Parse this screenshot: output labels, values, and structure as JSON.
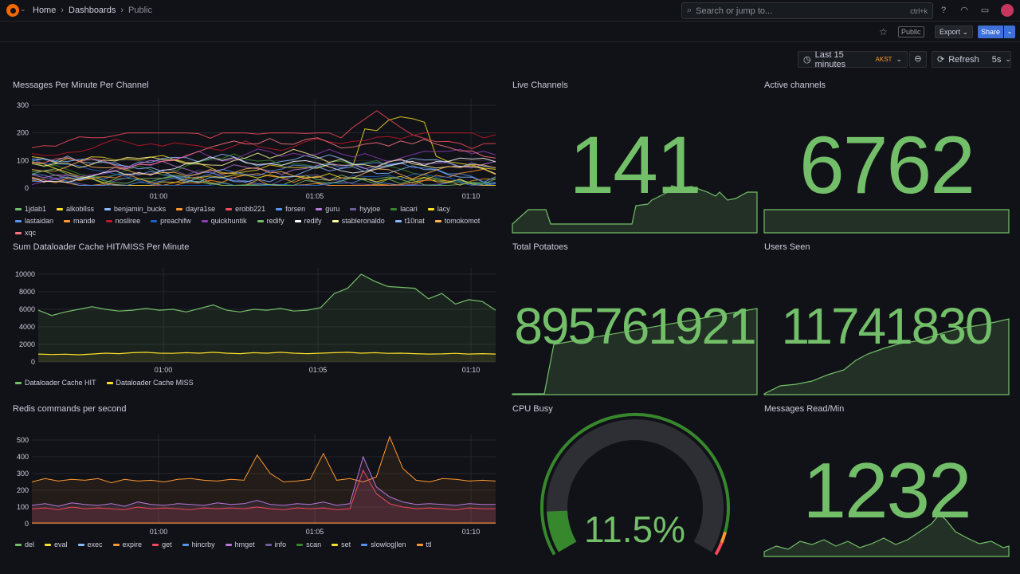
{
  "nav": {
    "breadcrumbs": [
      "Home",
      "Dashboards",
      "Public"
    ],
    "search_placeholder": "Search or jump to...",
    "search_shortcut": "ctrl+k",
    "public_badge": "Public",
    "export_label": "Export",
    "share_label": "Share"
  },
  "controls": {
    "time_range": "Last 15 minutes",
    "timezone": "AKST",
    "refresh_label": "Refresh",
    "refresh_interval": "5s"
  },
  "colors": {
    "green": "#73bf69",
    "yellow": "#fade2a",
    "red": "#f2495c",
    "blue": "#5794f2",
    "accent": "#3d71d9"
  },
  "panels": {
    "messages": {
      "title": "Messages Per Minute Per Channel",
      "y_ticks": [
        "300",
        "200",
        "100",
        "0"
      ],
      "x_ticks": [
        "01:00",
        "01:05",
        "01:10"
      ],
      "legend": [
        {
          "name": "1jdab1",
          "color": "#73bf69"
        },
        {
          "name": "alkoblIss",
          "color": "#fade2a"
        },
        {
          "name": "benjamin_bucks",
          "color": "#8ab8ff"
        },
        {
          "name": "dayra1se",
          "color": "#ff9830"
        },
        {
          "name": "erobb221",
          "color": "#f2495c"
        },
        {
          "name": "forsen",
          "color": "#5794f2"
        },
        {
          "name": "guru",
          "color": "#b877d9"
        },
        {
          "name": "hyyjoe",
          "color": "#705da0"
        },
        {
          "name": "lacari",
          "color": "#37872d"
        },
        {
          "name": "lacy",
          "color": "#fade2a"
        },
        {
          "name": "lastaidan",
          "color": "#5794f2"
        },
        {
          "name": "mande",
          "color": "#ff9830"
        },
        {
          "name": "nosliree",
          "color": "#c4162a"
        },
        {
          "name": "preachifw",
          "color": "#1f60c4"
        },
        {
          "name": "quickhuntik",
          "color": "#8f3bb8"
        },
        {
          "name": "redify",
          "color": "#73bf69"
        },
        {
          "name": "redify",
          "color": "#ffffff"
        },
        {
          "name": "stableronaldo",
          "color": "#fff899"
        },
        {
          "name": "t10nat",
          "color": "#8ab8ff"
        },
        {
          "name": "tomokomot",
          "color": "#ffb357"
        },
        {
          "name": "xqc",
          "color": "#ff7383"
        }
      ]
    },
    "dataloader": {
      "title": "Sum Dataloader Cache HIT/MISS Per Minute",
      "y_ticks": [
        "10000",
        "8000",
        "6000",
        "4000",
        "2000",
        "0"
      ],
      "x_ticks": [
        "01:00",
        "01:05",
        "01:10"
      ],
      "legend": [
        {
          "name": "Dataloader Cache HIT",
          "color": "#73bf69"
        },
        {
          "name": "Dataloader Cache MISS",
          "color": "#fade2a"
        }
      ],
      "hit": [
        5900,
        5300,
        5700,
        6000,
        6300,
        6000,
        5800,
        5900,
        6100,
        5900,
        6000,
        5700,
        6100,
        6500,
        5900,
        5700,
        6000,
        5900,
        6100,
        5800,
        5900,
        6200,
        7800,
        8400,
        10000,
        9200,
        8600,
        8500,
        8400,
        7200,
        7800,
        6600,
        7100,
        6900,
        5900
      ],
      "miss": [
        900,
        850,
        880,
        820,
        900,
        1000,
        950,
        1050,
        1100,
        1000,
        980,
        1050,
        1000,
        1100,
        1000,
        950,
        1050,
        1000,
        1100,
        1000,
        950,
        1000,
        1050,
        1100,
        1000,
        1050,
        980,
        1000,
        950,
        900,
        920,
        980,
        900,
        950,
        900
      ]
    },
    "redis": {
      "title": "Redis commands per second",
      "y_ticks": [
        "500",
        "400",
        "300",
        "200",
        "100",
        "0"
      ],
      "x_ticks": [
        "01:00",
        "01:05",
        "01:10"
      ],
      "legend": [
        {
          "name": "del",
          "color": "#73bf69"
        },
        {
          "name": "eval",
          "color": "#fade2a"
        },
        {
          "name": "exec",
          "color": "#8ab8ff"
        },
        {
          "name": "expire",
          "color": "#ff9830"
        },
        {
          "name": "get",
          "color": "#f2495c"
        },
        {
          "name": "hincrby",
          "color": "#5794f2"
        },
        {
          "name": "hmget",
          "color": "#b877d9"
        },
        {
          "name": "info",
          "color": "#705da0"
        },
        {
          "name": "scan",
          "color": "#37872d"
        },
        {
          "name": "set",
          "color": "#fade2a"
        },
        {
          "name": "slowlog|len",
          "color": "#5794f2"
        },
        {
          "name": "ttl",
          "color": "#ff9830"
        }
      ],
      "expire": [
        250,
        270,
        255,
        265,
        260,
        270,
        245,
        265,
        255,
        260,
        250,
        265,
        270,
        260,
        255,
        265,
        260,
        410,
        300,
        250,
        255,
        265,
        420,
        260,
        270,
        250,
        280,
        520,
        330,
        260,
        250,
        270,
        265,
        255,
        260,
        255
      ],
      "hmget": [
        110,
        120,
        105,
        125,
        115,
        110,
        120,
        105,
        130,
        115,
        110,
        120,
        115,
        110,
        125,
        115,
        120,
        140,
        115,
        110,
        120,
        115,
        130,
        110,
        120,
        400,
        220,
        160,
        130,
        115,
        120,
        115,
        110,
        120,
        115,
        115
      ],
      "get": [
        90,
        95,
        85,
        100,
        90,
        95,
        90,
        85,
        100,
        90,
        95,
        90,
        85,
        95,
        90,
        95,
        90,
        100,
        90,
        85,
        95,
        90,
        95,
        85,
        90,
        320,
        180,
        120,
        100,
        90,
        95,
        90,
        85,
        95,
        90,
        90
      ]
    },
    "live_channels": {
      "title": "Live Channels",
      "value": "141"
    },
    "active_channels": {
      "title": "Active channels",
      "value": "6762"
    },
    "total_potatoes": {
      "title": "Total Potatoes",
      "value": "895761921"
    },
    "users_seen": {
      "title": "Users Seen",
      "value": "11741830"
    },
    "cpu_busy": {
      "title": "CPU Busy",
      "value": "11.5%",
      "percent": 11.5
    },
    "messages_read": {
      "title": "Messages Read/Min",
      "value": "1232"
    }
  }
}
